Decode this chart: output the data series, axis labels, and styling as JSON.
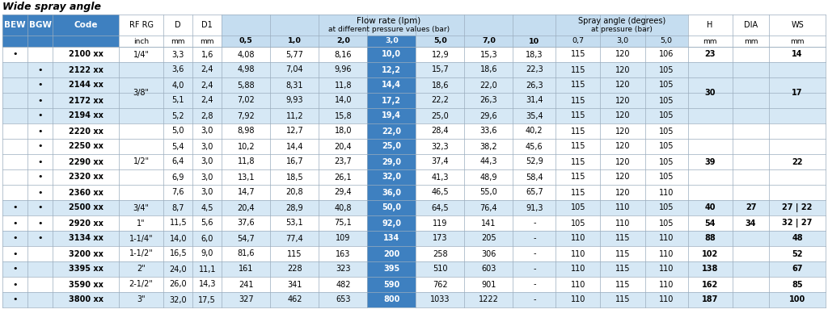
{
  "title": "Wide spray angle",
  "rows": [
    [
      "•",
      "",
      "2100 xx",
      "1/4\"",
      "3,3",
      "1,6",
      "4,08",
      "5,77",
      "8,16",
      "10,0",
      "12,9",
      "15,3",
      "18,3",
      "115",
      "120",
      "106",
      "23",
      "",
      "14"
    ],
    [
      "",
      "•",
      "2122 xx",
      "",
      "3,6",
      "2,4",
      "4,98",
      "7,04",
      "9,96",
      "12,2",
      "15,7",
      "18,6",
      "22,3",
      "115",
      "120",
      "105",
      "",
      "",
      ""
    ],
    [
      "",
      "•",
      "2144 xx",
      "3/8\"",
      "4,0",
      "2,4",
      "5,88",
      "8,31",
      "11,8",
      "14,4",
      "18,6",
      "22,0",
      "26,3",
      "115",
      "120",
      "105",
      "30",
      "",
      "17"
    ],
    [
      "",
      "•",
      "2172 xx",
      "",
      "5,1",
      "2,4",
      "7,02",
      "9,93",
      "14,0",
      "17,2",
      "22,2",
      "26,3",
      "31,4",
      "115",
      "120",
      "105",
      "",
      "",
      ""
    ],
    [
      "",
      "•",
      "2194 xx",
      "",
      "5,2",
      "2,8",
      "7,92",
      "11,2",
      "15,8",
      "19,4",
      "25,0",
      "29,6",
      "35,4",
      "115",
      "120",
      "105",
      "",
      "",
      ""
    ],
    [
      "",
      "•",
      "2220 xx",
      "",
      "5,0",
      "3,0",
      "8,98",
      "12,7",
      "18,0",
      "22,0",
      "28,4",
      "33,6",
      "40,2",
      "115",
      "120",
      "105",
      "",
      "",
      ""
    ],
    [
      "",
      "•",
      "2250 xx",
      "",
      "5,4",
      "3,0",
      "10,2",
      "14,4",
      "20,4",
      "25,0",
      "32,3",
      "38,2",
      "45,6",
      "115",
      "120",
      "105",
      "",
      "",
      ""
    ],
    [
      "",
      "•",
      "2290 xx",
      "1/2\"",
      "6,4",
      "3,0",
      "11,8",
      "16,7",
      "23,7",
      "29,0",
      "37,4",
      "44,3",
      "52,9",
      "115",
      "120",
      "105",
      "39",
      "",
      "22"
    ],
    [
      "",
      "•",
      "2320 xx",
      "",
      "6,9",
      "3,0",
      "13,1",
      "18,5",
      "26,1",
      "32,0",
      "41,3",
      "48,9",
      "58,4",
      "115",
      "120",
      "105",
      "",
      "",
      ""
    ],
    [
      "",
      "•",
      "2360 xx",
      "",
      "7,6",
      "3,0",
      "14,7",
      "20,8",
      "29,4",
      "36,0",
      "46,5",
      "55,0",
      "65,7",
      "115",
      "120",
      "110",
      "",
      "",
      ""
    ],
    [
      "•",
      "•",
      "2500 xx",
      "3/4\"",
      "8,7",
      "4,5",
      "20,4",
      "28,9",
      "40,8",
      "50,0",
      "64,5",
      "76,4",
      "91,3",
      "105",
      "110",
      "105",
      "40",
      "27",
      "27 | 22"
    ],
    [
      "•",
      "•",
      "2920 xx",
      "1\"",
      "11,5",
      "5,6",
      "37,6",
      "53,1",
      "75,1",
      "92,0",
      "119",
      "141",
      "-",
      "105",
      "110",
      "105",
      "54",
      "34",
      "32 | 27"
    ],
    [
      "•",
      "•",
      "3134 xx",
      "1-1/4\"",
      "14,0",
      "6,0",
      "54,7",
      "77,4",
      "109",
      "134",
      "173",
      "205",
      "-",
      "110",
      "115",
      "110",
      "88",
      "",
      "48"
    ],
    [
      "•",
      "",
      "3200 xx",
      "1-1/2\"",
      "16,5",
      "9,0",
      "81,6",
      "115",
      "163",
      "200",
      "258",
      "306",
      "-",
      "110",
      "115",
      "110",
      "102",
      "",
      "52"
    ],
    [
      "•",
      "",
      "3395 xx",
      "2\"",
      "24,0",
      "11,1",
      "161",
      "228",
      "323",
      "395",
      "510",
      "603",
      "-",
      "110",
      "115",
      "110",
      "138",
      "",
      "67"
    ],
    [
      "•",
      "",
      "3590 xx",
      "2-1/2\"",
      "26,0",
      "14,3",
      "241",
      "341",
      "482",
      "590",
      "762",
      "901",
      "-",
      "110",
      "115",
      "110",
      "162",
      "",
      "85"
    ],
    [
      "•",
      "",
      "3800 xx",
      "3\"",
      "32,0",
      "17,5",
      "327",
      "462",
      "653",
      "800",
      "1033",
      "1222",
      "-",
      "110",
      "115",
      "110",
      "187",
      "",
      "100"
    ]
  ],
  "rf_rg_groups": [
    [
      0,
      0,
      "1/4\""
    ],
    [
      1,
      4,
      "3/8\""
    ],
    [
      5,
      9,
      "1/2\""
    ],
    [
      10,
      10,
      "3/4\""
    ],
    [
      11,
      11,
      "1\""
    ],
    [
      12,
      12,
      "1-1/4\""
    ],
    [
      13,
      13,
      "1-1/2\""
    ],
    [
      14,
      14,
      "2\""
    ],
    [
      15,
      15,
      "2-1/2\""
    ],
    [
      16,
      16,
      "3\""
    ]
  ],
  "h_groups": [
    [
      0,
      0,
      "23"
    ],
    [
      1,
      4,
      "30"
    ],
    [
      5,
      9,
      "39"
    ],
    [
      10,
      10,
      "40"
    ],
    [
      11,
      11,
      "54"
    ],
    [
      12,
      12,
      "88"
    ],
    [
      13,
      13,
      "102"
    ],
    [
      14,
      14,
      "138"
    ],
    [
      15,
      15,
      "162"
    ],
    [
      16,
      16,
      "187"
    ]
  ],
  "dia_groups": [
    [
      10,
      10,
      "27"
    ],
    [
      11,
      11,
      "34"
    ]
  ],
  "ws_groups": [
    [
      0,
      0,
      "14"
    ],
    [
      1,
      4,
      "17"
    ],
    [
      5,
      9,
      "22"
    ],
    [
      10,
      10,
      "27 | 22"
    ],
    [
      11,
      11,
      "32 | 27"
    ],
    [
      12,
      12,
      "48"
    ],
    [
      13,
      13,
      "52"
    ],
    [
      14,
      14,
      "67"
    ],
    [
      15,
      15,
      "85"
    ],
    [
      16,
      16,
      "100"
    ]
  ],
  "row_bg": [
    "#FFFFFF",
    "#DDEEFF",
    "#DDEEFF",
    "#DDEEFF",
    "#DDEEFF",
    "#FFFFFF",
    "#FFFFFF",
    "#FFFFFF",
    "#FFFFFF",
    "#FFFFFF",
    "#DDEEFF",
    "#FFFFFF",
    "#DDEEFF",
    "#FFFFFF",
    "#DDEEFF",
    "#FFFFFF",
    "#DDEEFF"
  ],
  "dark_blue": "#3E80C0",
  "light_blue": "#C5DDF0",
  "mid_blue": "#8DB8E0",
  "alt_row": "#D6E8F5",
  "white": "#FFFFFF",
  "grid_color": "#9AADBE",
  "flow_pressures": [
    "0,5",
    "1,0",
    "2,0",
    "3,0",
    "5,0",
    "7,0",
    "10"
  ],
  "spray_pressures": [
    "0,7",
    "3,0",
    "5,0"
  ],
  "col_widths_raw": [
    26,
    26,
    68,
    46,
    30,
    30,
    50,
    50,
    50,
    50,
    50,
    50,
    44,
    46,
    46,
    44,
    46,
    38,
    58
  ]
}
